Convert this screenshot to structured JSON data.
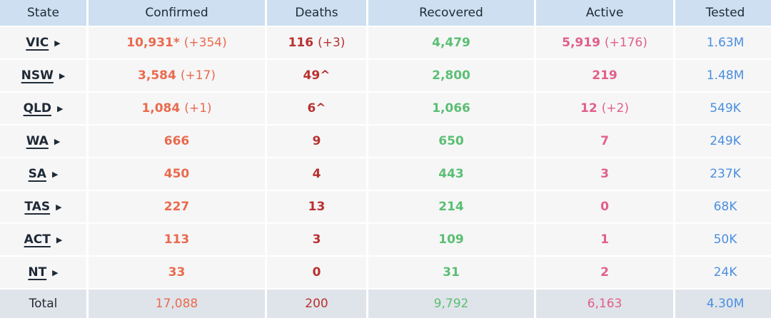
{
  "headers": {
    "state": "State",
    "confirmed": "Confirmed",
    "deaths": "Deaths",
    "recovered": "Recovered",
    "active": "Active",
    "tested": "Tested"
  },
  "rows": [
    {
      "state": "VIC",
      "confirmed": "10,931*",
      "confirmed_delta": "(+354)",
      "deaths": "116",
      "deaths_delta": "(+3)",
      "recovered": "4,479",
      "active": "5,919",
      "active_delta": "(+176)",
      "tested": "1.63M"
    },
    {
      "state": "NSW",
      "confirmed": "3,584",
      "confirmed_delta": "(+17)",
      "deaths": "49^",
      "deaths_delta": "",
      "recovered": "2,800",
      "active": "219",
      "active_delta": "",
      "tested": "1.48M"
    },
    {
      "state": "QLD",
      "confirmed": "1,084",
      "confirmed_delta": "(+1)",
      "deaths": "6^",
      "deaths_delta": "",
      "recovered": "1,066",
      "active": "12",
      "active_delta": "(+2)",
      "tested": "549K"
    },
    {
      "state": "WA",
      "confirmed": "666",
      "confirmed_delta": "",
      "deaths": "9",
      "deaths_delta": "",
      "recovered": "650",
      "active": "7",
      "active_delta": "",
      "tested": "249K"
    },
    {
      "state": "SA",
      "confirmed": "450",
      "confirmed_delta": "",
      "deaths": "4",
      "deaths_delta": "",
      "recovered": "443",
      "active": "3",
      "active_delta": "",
      "tested": "237K"
    },
    {
      "state": "TAS",
      "confirmed": "227",
      "confirmed_delta": "",
      "deaths": "13",
      "deaths_delta": "",
      "recovered": "214",
      "active": "0",
      "active_delta": "",
      "tested": "68K"
    },
    {
      "state": "ACT",
      "confirmed": "113",
      "confirmed_delta": "",
      "deaths": "3",
      "deaths_delta": "",
      "recovered": "109",
      "active": "1",
      "active_delta": "",
      "tested": "50K"
    },
    {
      "state": "NT",
      "confirmed": "33",
      "confirmed_delta": "",
      "deaths": "0",
      "deaths_delta": "",
      "recovered": "31",
      "active": "2",
      "active_delta": "",
      "tested": "24K"
    }
  ],
  "total": {
    "label": "Total",
    "confirmed": "17,088",
    "deaths": "200",
    "recovered": "9,792",
    "active": "6,163",
    "tested": "4.30M"
  },
  "icons": {
    "expand": "caret-right-icon"
  },
  "colors": {
    "confirmed": "#ea6a4d",
    "deaths": "#b8312f",
    "recovered": "#5bbf73",
    "active": "#e25f87",
    "tested": "#4a8fdf",
    "header_bg": "#cddff0"
  }
}
